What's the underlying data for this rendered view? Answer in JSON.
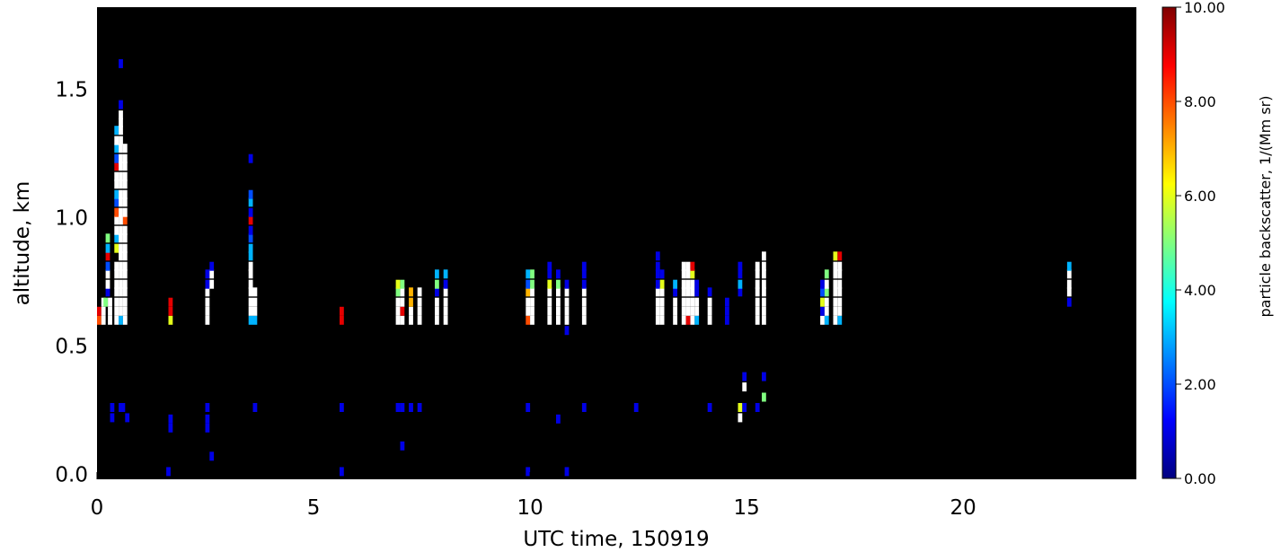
{
  "chart_data": {
    "type": "heatmap",
    "xlabel": "UTC time, 150919",
    "ylabel": "altitude, km",
    "xlim": [
      0,
      24
    ],
    "ylim": [
      -0.02,
      1.82
    ],
    "x_ticks": [
      0,
      5,
      10,
      15,
      20
    ],
    "x_tick_labels": [
      "0",
      "5",
      "10",
      "15",
      "20"
    ],
    "y_ticks": [
      0.0,
      0.5,
      1.0,
      1.5
    ],
    "y_tick_labels": [
      "0.0",
      "0.5",
      "1.0",
      "1.5"
    ],
    "background": "#000000",
    "grid": false,
    "colorbar": {
      "label": "particle backscatter, 1/(Mm sr)",
      "range": [
        0,
        10
      ],
      "ticks": [
        0,
        2,
        4,
        6,
        8,
        10
      ],
      "tick_labels": [
        "0.00",
        "2.00",
        "4.00",
        "6.00",
        "8.00",
        "10.00"
      ],
      "colormap": "jet",
      "saturated_color": "#ffffff"
    },
    "cell_size": {
      "dt_hours": 0.1,
      "dz_km": 0.035
    },
    "cells": [
      [
        0.05,
        0.6,
        8
      ],
      [
        0.05,
        0.635,
        9
      ],
      [
        0.15,
        0.6,
        11
      ],
      [
        0.15,
        0.635,
        11
      ],
      [
        0.15,
        0.67,
        11
      ],
      [
        0.2,
        0.67,
        5
      ],
      [
        0.25,
        0.71,
        1
      ],
      [
        0.25,
        0.74,
        11
      ],
      [
        0.25,
        0.78,
        11
      ],
      [
        0.25,
        0.81,
        2
      ],
      [
        0.25,
        0.85,
        9
      ],
      [
        0.25,
        0.88,
        3
      ],
      [
        0.25,
        0.92,
        5
      ],
      [
        0.3,
        0.6,
        11
      ],
      [
        0.3,
        0.635,
        11
      ],
      [
        0.3,
        0.67,
        11
      ],
      [
        0.45,
        0.6,
        11
      ],
      [
        0.45,
        0.635,
        11
      ],
      [
        0.45,
        0.67,
        11
      ],
      [
        0.45,
        0.71,
        11
      ],
      [
        0.45,
        0.74,
        11
      ],
      [
        0.45,
        0.78,
        11
      ],
      [
        0.45,
        0.81,
        11
      ],
      [
        0.45,
        0.88,
        6
      ],
      [
        0.45,
        0.92,
        3
      ],
      [
        0.45,
        0.95,
        11
      ],
      [
        0.45,
        0.99,
        11
      ],
      [
        0.45,
        1.02,
        8
      ],
      [
        0.45,
        1.06,
        2
      ],
      [
        0.45,
        1.09,
        3
      ],
      [
        0.45,
        1.13,
        11
      ],
      [
        0.45,
        1.16,
        11
      ],
      [
        0.45,
        1.2,
        9
      ],
      [
        0.45,
        1.23,
        2
      ],
      [
        0.45,
        1.27,
        3
      ],
      [
        0.45,
        1.3,
        11
      ],
      [
        0.45,
        1.34,
        3
      ],
      [
        0.55,
        0.6,
        3
      ],
      [
        0.55,
        0.635,
        11
      ],
      [
        0.55,
        0.67,
        11
      ],
      [
        0.55,
        0.71,
        11
      ],
      [
        0.55,
        0.74,
        11
      ],
      [
        0.55,
        0.78,
        11
      ],
      [
        0.55,
        0.81,
        11
      ],
      [
        0.55,
        0.85,
        11
      ],
      [
        0.55,
        0.88,
        11
      ],
      [
        0.55,
        0.92,
        11
      ],
      [
        0.55,
        0.95,
        11
      ],
      [
        0.55,
        0.99,
        11
      ],
      [
        0.55,
        1.02,
        11
      ],
      [
        0.55,
        1.06,
        11
      ],
      [
        0.55,
        1.09,
        11
      ],
      [
        0.55,
        1.13,
        11
      ],
      [
        0.55,
        1.16,
        11
      ],
      [
        0.55,
        1.2,
        11
      ],
      [
        0.55,
        1.23,
        11
      ],
      [
        0.55,
        1.27,
        11
      ],
      [
        0.55,
        1.3,
        11
      ],
      [
        0.55,
        1.34,
        11
      ],
      [
        0.55,
        1.37,
        11
      ],
      [
        0.55,
        1.4,
        11
      ],
      [
        0.55,
        1.44,
        1
      ],
      [
        0.55,
        1.6,
        1
      ],
      [
        0.65,
        0.6,
        11
      ],
      [
        0.65,
        0.635,
        11
      ],
      [
        0.65,
        0.67,
        11
      ],
      [
        0.65,
        0.71,
        11
      ],
      [
        0.65,
        0.74,
        11
      ],
      [
        0.65,
        0.78,
        11
      ],
      [
        0.65,
        0.81,
        11
      ],
      [
        0.65,
        0.85,
        11
      ],
      [
        0.65,
        0.88,
        11
      ],
      [
        0.65,
        0.92,
        11
      ],
      [
        0.65,
        0.95,
        11
      ],
      [
        0.65,
        0.99,
        8
      ],
      [
        0.65,
        1.02,
        11
      ],
      [
        0.65,
        1.06,
        11
      ],
      [
        0.65,
        1.09,
        11
      ],
      [
        0.65,
        1.13,
        11
      ],
      [
        0.65,
        1.16,
        11
      ],
      [
        0.65,
        1.2,
        11
      ],
      [
        0.65,
        1.23,
        11
      ],
      [
        0.65,
        1.27,
        11
      ],
      [
        0.35,
        0.26,
        1
      ],
      [
        0.35,
        0.22,
        1
      ],
      [
        0.55,
        0.26,
        1
      ],
      [
        0.6,
        0.26,
        1
      ],
      [
        0.7,
        0.22,
        1
      ],
      [
        1.7,
        0.6,
        6
      ],
      [
        1.7,
        0.635,
        9
      ],
      [
        1.7,
        0.67,
        9
      ],
      [
        1.7,
        0.215,
        1
      ],
      [
        1.7,
        0.18,
        1
      ],
      [
        1.65,
        0.01,
        1
      ],
      [
        2.55,
        0.6,
        11
      ],
      [
        2.55,
        0.635,
        11
      ],
      [
        2.55,
        0.67,
        11
      ],
      [
        2.55,
        0.71,
        11
      ],
      [
        2.55,
        0.74,
        1
      ],
      [
        2.55,
        0.78,
        1
      ],
      [
        2.65,
        0.74,
        11
      ],
      [
        2.65,
        0.78,
        11
      ],
      [
        2.65,
        0.81,
        1
      ],
      [
        2.55,
        0.26,
        1
      ],
      [
        2.55,
        0.215,
        1
      ],
      [
        2.65,
        0.07,
        1
      ],
      [
        2.55,
        0.18,
        1
      ],
      [
        3.55,
        0.6,
        3
      ],
      [
        3.55,
        0.635,
        11
      ],
      [
        3.55,
        0.67,
        11
      ],
      [
        3.55,
        0.71,
        11
      ],
      [
        3.55,
        0.74,
        11
      ],
      [
        3.55,
        0.78,
        11
      ],
      [
        3.55,
        0.81,
        11
      ],
      [
        3.55,
        0.85,
        3
      ],
      [
        3.55,
        0.88,
        3
      ],
      [
        3.55,
        0.92,
        2
      ],
      [
        3.55,
        0.95,
        1
      ],
      [
        3.55,
        0.99,
        9
      ],
      [
        3.55,
        1.02,
        1
      ],
      [
        3.55,
        1.06,
        3
      ],
      [
        3.55,
        1.09,
        2
      ],
      [
        3.55,
        1.23,
        1
      ],
      [
        3.65,
        0.6,
        3
      ],
      [
        3.65,
        0.635,
        11
      ],
      [
        3.65,
        0.67,
        11
      ],
      [
        3.65,
        0.71,
        11
      ],
      [
        3.65,
        0.26,
        1
      ],
      [
        5.65,
        0.6,
        9
      ],
      [
        5.65,
        0.635,
        9
      ],
      [
        5.65,
        0.26,
        1
      ],
      [
        5.65,
        0.01,
        1
      ],
      [
        6.95,
        0.6,
        11
      ],
      [
        6.95,
        0.635,
        11
      ],
      [
        6.95,
        0.67,
        11
      ],
      [
        6.95,
        0.71,
        5
      ],
      [
        6.95,
        0.74,
        6
      ],
      [
        6.95,
        0.26,
        1
      ],
      [
        7.05,
        0.6,
        11
      ],
      [
        7.05,
        0.635,
        9
      ],
      [
        7.05,
        0.67,
        11
      ],
      [
        7.05,
        0.71,
        11
      ],
      [
        7.05,
        0.74,
        5
      ],
      [
        7.05,
        0.26,
        1
      ],
      [
        7.05,
        0.11,
        1
      ],
      [
        7.25,
        0.6,
        11
      ],
      [
        7.25,
        0.635,
        11
      ],
      [
        7.25,
        0.67,
        7
      ],
      [
        7.25,
        0.71,
        7
      ],
      [
        7.25,
        0.26,
        1
      ],
      [
        7.45,
        0.6,
        11
      ],
      [
        7.45,
        0.635,
        11
      ],
      [
        7.45,
        0.67,
        11
      ],
      [
        7.45,
        0.71,
        11
      ],
      [
        7.45,
        0.26,
        1
      ],
      [
        7.85,
        0.6,
        11
      ],
      [
        7.85,
        0.635,
        11
      ],
      [
        7.85,
        0.67,
        11
      ],
      [
        7.85,
        0.71,
        1
      ],
      [
        7.85,
        0.74,
        5
      ],
      [
        7.85,
        0.78,
        3
      ],
      [
        8.05,
        0.6,
        11
      ],
      [
        8.05,
        0.635,
        11
      ],
      [
        8.05,
        0.67,
        11
      ],
      [
        8.05,
        0.71,
        11
      ],
      [
        8.05,
        0.74,
        1
      ],
      [
        8.05,
        0.78,
        3
      ],
      [
        9.95,
        0.6,
        8
      ],
      [
        9.95,
        0.635,
        11
      ],
      [
        9.95,
        0.67,
        11
      ],
      [
        9.95,
        0.71,
        7
      ],
      [
        9.95,
        0.74,
        2
      ],
      [
        9.95,
        0.78,
        3
      ],
      [
        9.95,
        0.26,
        1
      ],
      [
        9.95,
        0.01,
        1
      ],
      [
        10.05,
        0.6,
        11
      ],
      [
        10.05,
        0.635,
        11
      ],
      [
        10.05,
        0.67,
        11
      ],
      [
        10.05,
        0.71,
        11
      ],
      [
        10.05,
        0.74,
        5
      ],
      [
        10.05,
        0.78,
        5
      ],
      [
        10.45,
        0.6,
        11
      ],
      [
        10.45,
        0.635,
        11
      ],
      [
        10.45,
        0.67,
        11
      ],
      [
        10.45,
        0.71,
        11
      ],
      [
        10.45,
        0.74,
        6
      ],
      [
        10.45,
        0.78,
        1
      ],
      [
        10.45,
        0.81,
        1
      ],
      [
        10.65,
        0.6,
        11
      ],
      [
        10.65,
        0.635,
        11
      ],
      [
        10.65,
        0.67,
        11
      ],
      [
        10.65,
        0.71,
        11
      ],
      [
        10.65,
        0.74,
        5
      ],
      [
        10.65,
        0.78,
        1
      ],
      [
        10.65,
        0.215,
        1
      ],
      [
        10.85,
        0.6,
        11
      ],
      [
        10.85,
        0.635,
        11
      ],
      [
        10.85,
        0.67,
        11
      ],
      [
        10.85,
        0.71,
        11
      ],
      [
        10.85,
        0.74,
        1
      ],
      [
        10.85,
        0.56,
        1
      ],
      [
        10.85,
        0.01,
        1
      ],
      [
        11.25,
        0.6,
        11
      ],
      [
        11.25,
        0.635,
        11
      ],
      [
        11.25,
        0.67,
        11
      ],
      [
        11.25,
        0.71,
        11
      ],
      [
        11.25,
        0.74,
        1
      ],
      [
        11.25,
        0.78,
        1
      ],
      [
        11.25,
        0.81,
        1
      ],
      [
        11.25,
        0.26,
        1
      ],
      [
        12.45,
        0.26,
        1
      ],
      [
        12.95,
        0.6,
        11
      ],
      [
        12.95,
        0.635,
        11
      ],
      [
        12.95,
        0.67,
        11
      ],
      [
        12.95,
        0.71,
        11
      ],
      [
        12.95,
        0.74,
        1
      ],
      [
        12.95,
        0.78,
        1
      ],
      [
        12.95,
        0.81,
        1
      ],
      [
        12.95,
        0.85,
        1
      ],
      [
        13.05,
        0.6,
        11
      ],
      [
        13.05,
        0.635,
        11
      ],
      [
        13.05,
        0.67,
        11
      ],
      [
        13.05,
        0.71,
        11
      ],
      [
        13.05,
        0.74,
        6
      ],
      [
        13.05,
        0.78,
        1
      ],
      [
        13.35,
        0.6,
        11
      ],
      [
        13.35,
        0.635,
        11
      ],
      [
        13.35,
        0.67,
        11
      ],
      [
        13.35,
        0.71,
        1
      ],
      [
        13.35,
        0.74,
        3
      ],
      [
        13.55,
        0.6,
        11
      ],
      [
        13.55,
        0.635,
        11
      ],
      [
        13.55,
        0.67,
        11
      ],
      [
        13.55,
        0.71,
        11
      ],
      [
        13.55,
        0.74,
        11
      ],
      [
        13.55,
        0.78,
        11
      ],
      [
        13.55,
        0.81,
        11
      ],
      [
        13.65,
        0.6,
        9
      ],
      [
        13.65,
        0.635,
        11
      ],
      [
        13.65,
        0.67,
        11
      ],
      [
        13.65,
        0.71,
        11
      ],
      [
        13.65,
        0.74,
        11
      ],
      [
        13.65,
        0.78,
        11
      ],
      [
        13.65,
        0.81,
        11
      ],
      [
        13.75,
        0.6,
        11
      ],
      [
        13.75,
        0.635,
        11
      ],
      [
        13.75,
        0.67,
        11
      ],
      [
        13.75,
        0.71,
        11
      ],
      [
        13.75,
        0.74,
        11
      ],
      [
        13.75,
        0.78,
        6
      ],
      [
        13.75,
        0.81,
        9
      ],
      [
        13.85,
        0.6,
        3
      ],
      [
        13.85,
        0.635,
        11
      ],
      [
        13.85,
        0.67,
        11
      ],
      [
        13.85,
        0.71,
        1
      ],
      [
        13.85,
        0.74,
        1
      ],
      [
        14.15,
        0.6,
        11
      ],
      [
        14.15,
        0.635,
        11
      ],
      [
        14.15,
        0.67,
        11
      ],
      [
        14.15,
        0.71,
        1
      ],
      [
        14.15,
        0.26,
        1
      ],
      [
        14.55,
        0.6,
        1
      ],
      [
        14.55,
        0.635,
        1
      ],
      [
        14.55,
        0.67,
        1
      ],
      [
        14.85,
        0.71,
        1
      ],
      [
        14.85,
        0.74,
        3
      ],
      [
        14.85,
        0.78,
        1
      ],
      [
        14.85,
        0.81,
        1
      ],
      [
        14.85,
        0.26,
        6
      ],
      [
        14.85,
        0.22,
        11
      ],
      [
        14.95,
        0.38,
        1
      ],
      [
        14.95,
        0.34,
        11
      ],
      [
        14.95,
        0.26,
        1
      ],
      [
        15.25,
        0.6,
        11
      ],
      [
        15.25,
        0.635,
        11
      ],
      [
        15.25,
        0.67,
        11
      ],
      [
        15.25,
        0.71,
        11
      ],
      [
        15.25,
        0.74,
        11
      ],
      [
        15.25,
        0.78,
        11
      ],
      [
        15.25,
        0.81,
        11
      ],
      [
        15.25,
        0.26,
        1
      ],
      [
        15.4,
        0.6,
        11
      ],
      [
        15.4,
        0.635,
        11
      ],
      [
        15.4,
        0.67,
        11
      ],
      [
        15.4,
        0.71,
        11
      ],
      [
        15.4,
        0.74,
        11
      ],
      [
        15.4,
        0.78,
        11
      ],
      [
        15.4,
        0.81,
        11
      ],
      [
        15.4,
        0.85,
        11
      ],
      [
        15.4,
        0.3,
        5
      ],
      [
        15.4,
        0.38,
        1
      ],
      [
        16.75,
        0.6,
        11
      ],
      [
        16.75,
        0.635,
        1
      ],
      [
        16.75,
        0.67,
        6
      ],
      [
        16.75,
        0.71,
        2
      ],
      [
        16.75,
        0.74,
        1
      ],
      [
        16.85,
        0.6,
        3
      ],
      [
        16.85,
        0.635,
        11
      ],
      [
        16.85,
        0.67,
        11
      ],
      [
        16.85,
        0.71,
        5
      ],
      [
        16.85,
        0.74,
        11
      ],
      [
        16.85,
        0.78,
        5
      ],
      [
        17.05,
        0.6,
        11
      ],
      [
        17.05,
        0.635,
        11
      ],
      [
        17.05,
        0.67,
        11
      ],
      [
        17.05,
        0.71,
        11
      ],
      [
        17.05,
        0.74,
        11
      ],
      [
        17.05,
        0.78,
        11
      ],
      [
        17.05,
        0.81,
        11
      ],
      [
        17.05,
        0.85,
        6
      ],
      [
        17.15,
        0.6,
        3
      ],
      [
        17.15,
        0.635,
        11
      ],
      [
        17.15,
        0.67,
        11
      ],
      [
        17.15,
        0.71,
        11
      ],
      [
        17.15,
        0.74,
        11
      ],
      [
        17.15,
        0.78,
        11
      ],
      [
        17.15,
        0.81,
        11
      ],
      [
        17.15,
        0.85,
        9
      ],
      [
        22.45,
        0.67,
        1
      ],
      [
        22.45,
        0.71,
        11
      ],
      [
        22.45,
        0.74,
        11
      ],
      [
        22.45,
        0.78,
        11
      ],
      [
        22.45,
        0.81,
        3
      ]
    ]
  }
}
